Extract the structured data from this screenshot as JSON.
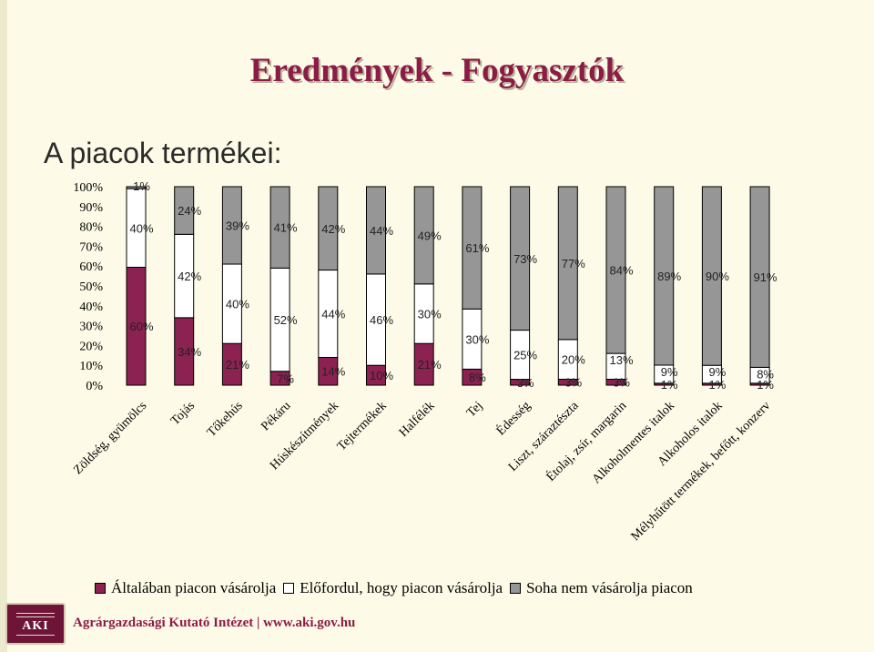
{
  "slide": {
    "title": "Eredmények - Fogyasztók",
    "subtitle": "A piacok termékei:"
  },
  "footer": {
    "logo_text": "AKI",
    "institute": "Agrárgazdasági Kutató Intézet | www.aki.gov.hu"
  },
  "colors": {
    "title": "#8b1c46",
    "series_often": "#8b2252",
    "series_sometimes": "#ffffff",
    "series_never": "#969696"
  },
  "chart_data": {
    "type": "bar",
    "stacked": true,
    "percent": true,
    "ylim": [
      0,
      100
    ],
    "yticks": [
      "0%",
      "10%",
      "20%",
      "30%",
      "40%",
      "50%",
      "60%",
      "70%",
      "80%",
      "90%",
      "100%"
    ],
    "categories": [
      "Zöldség, gyümölcs",
      "Tojás",
      "Tőkehús",
      "Pékáru",
      "Húskészítmények",
      "Tejtermékek",
      "Halfélék",
      "Tej",
      "Édesség",
      "Liszt, száraztészta",
      "Étolaj, zsír, margarin",
      "Alkoholmentes italok",
      "Alkoholos italok",
      "Mélyhűtött termékek, befőtt, konzerv"
    ],
    "series": [
      {
        "name": "Általában piacon vásárolja",
        "values": [
          60,
          34,
          21,
          7,
          14,
          10,
          21,
          8,
          3,
          3,
          3,
          1,
          1,
          1
        ],
        "labels": [
          "60%",
          "34%",
          "21%",
          "7%",
          "14%",
          "10%",
          "21%",
          "8%",
          "3%",
          "3%",
          "3%",
          "1%",
          "1%",
          "1%"
        ]
      },
      {
        "name": "Előfordul, hogy piacon vásárolja",
        "values": [
          40,
          42,
          40,
          52,
          44,
          46,
          30,
          30,
          25,
          20,
          13,
          9,
          9,
          8
        ],
        "labels": [
          "40%",
          "42%",
          "40%",
          "52%",
          "44%",
          "46%",
          "30%",
          "30%",
          "25%",
          "20%",
          "13%",
          "9%",
          "9%",
          "8%"
        ]
      },
      {
        "name": "Soha nem vásárolja piacon",
        "values": [
          1,
          24,
          39,
          41,
          42,
          44,
          49,
          61,
          73,
          77,
          84,
          89,
          90,
          91
        ],
        "labels": [
          "1%",
          "24%",
          "39%",
          "41%",
          "42%",
          "44%",
          "49%",
          "61%",
          "73%",
          "77%",
          "84%",
          "89%",
          "90%",
          "91%"
        ]
      }
    ],
    "legend": "bottom"
  }
}
